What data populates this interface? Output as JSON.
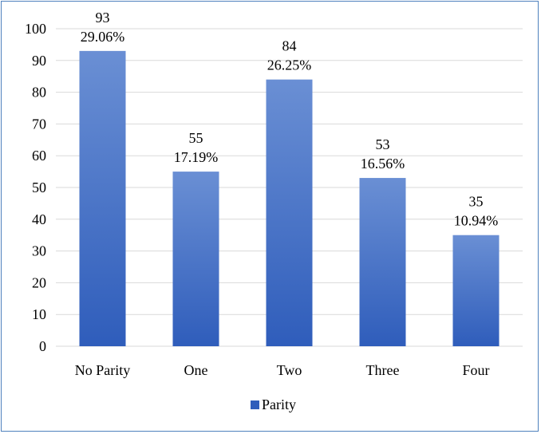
{
  "chart_data": {
    "type": "bar",
    "categories": [
      "No Parity",
      "One",
      "Two",
      "Three",
      "Four"
    ],
    "series": [
      {
        "name": "Parity",
        "values": [
          93,
          55,
          84,
          53,
          35
        ],
        "percent_labels": [
          "29.06%",
          "17.19%",
          "26.25%",
          "16.56%",
          "10.94%"
        ]
      }
    ],
    "yticks": [
      "0",
      "10",
      "20",
      "30",
      "40",
      "50",
      "60",
      "70",
      "80",
      "90",
      "100"
    ],
    "ylim": [
      0,
      100
    ],
    "grid": true,
    "legend_position": "bottom",
    "colors": {
      "bar_top": "#6a8fd4",
      "bar_bottom": "#2f5dbb",
      "grid": "#d9d9d9",
      "frame": "#4f81bd"
    }
  }
}
